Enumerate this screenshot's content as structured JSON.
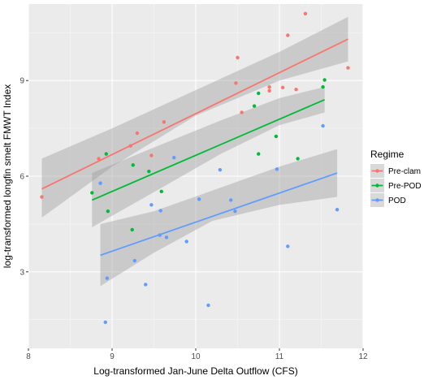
{
  "chart_data": {
    "type": "scatter",
    "xlabel": "Log-transformed Jan-June Delta Outflow (CFS)",
    "ylabel": "log-transformed longfin smelt FMWT Index",
    "xlim": [
      8,
      12
    ],
    "ylim": [
      0.6,
      11.4
    ],
    "x_ticks": [
      8,
      9,
      10,
      11,
      12
    ],
    "y_ticks": [
      3,
      6,
      9
    ],
    "x_tick_labels": [
      "8",
      "9",
      "10",
      "11",
      "12"
    ],
    "y_tick_labels": [
      "3",
      "6",
      "9"
    ],
    "grid": true,
    "background": "#ebebeb",
    "legend": {
      "title": "Regime",
      "position": "right"
    },
    "series": [
      {
        "name": "Pre-clam",
        "color": "#F8766D",
        "points": [
          [
            8.16,
            5.35
          ],
          [
            8.84,
            6.55
          ],
          [
            9.22,
            6.95
          ],
          [
            9.3,
            7.35
          ],
          [
            9.47,
            6.65
          ],
          [
            9.62,
            7.7
          ],
          [
            10.48,
            8.92
          ],
          [
            10.5,
            9.72
          ],
          [
            10.55,
            8.0
          ],
          [
            10.88,
            8.8
          ],
          [
            10.88,
            8.68
          ],
          [
            11.04,
            8.78
          ],
          [
            11.1,
            10.42
          ],
          [
            11.2,
            8.72
          ],
          [
            11.31,
            11.1
          ],
          [
            11.82,
            9.4
          ]
        ],
        "fit": {
          "x": [
            8.16,
            11.82
          ],
          "y": [
            5.6,
            10.3
          ]
        },
        "ci_lower": [
          [
            8.16,
            4.7
          ],
          [
            9.0,
            6.3
          ],
          [
            10.0,
            7.9
          ],
          [
            11.0,
            9.0
          ],
          [
            11.82,
            9.6
          ]
        ],
        "ci_upper": [
          [
            8.16,
            6.55
          ],
          [
            9.0,
            7.5
          ],
          [
            10.0,
            8.7
          ],
          [
            11.0,
            9.9
          ],
          [
            11.82,
            11.0
          ]
        ]
      },
      {
        "name": "Pre-POD",
        "color": "#00BA38",
        "points": [
          [
            8.76,
            5.48
          ],
          [
            8.93,
            6.7
          ],
          [
            8.95,
            4.9
          ],
          [
            9.24,
            4.32
          ],
          [
            9.25,
            6.35
          ],
          [
            9.44,
            6.15
          ],
          [
            9.59,
            5.52
          ],
          [
            10.7,
            8.2
          ],
          [
            10.75,
            8.6
          ],
          [
            10.75,
            6.7
          ],
          [
            10.96,
            7.25
          ],
          [
            11.22,
            6.55
          ],
          [
            11.52,
            8.8
          ],
          [
            11.54,
            9.02
          ]
        ],
        "fit": {
          "x": [
            8.76,
            11.54
          ],
          "y": [
            5.25,
            8.4
          ]
        },
        "ci_lower": [
          [
            8.76,
            4.4
          ],
          [
            9.5,
            5.5
          ],
          [
            10.3,
            6.7
          ],
          [
            11.0,
            7.6
          ],
          [
            11.54,
            8.0
          ]
        ],
        "ci_upper": [
          [
            8.76,
            6.1
          ],
          [
            9.5,
            6.9
          ],
          [
            10.3,
            7.75
          ],
          [
            11.0,
            8.45
          ],
          [
            11.54,
            8.8
          ]
        ]
      },
      {
        "name": "POD",
        "color": "#619CFF",
        "points": [
          [
            8.86,
            5.78
          ],
          [
            8.92,
            1.42
          ],
          [
            8.94,
            2.8
          ],
          [
            9.27,
            3.35
          ],
          [
            9.4,
            2.6
          ],
          [
            9.47,
            5.1
          ],
          [
            9.57,
            4.15
          ],
          [
            9.58,
            4.92
          ],
          [
            9.65,
            4.08
          ],
          [
            9.74,
            6.58
          ],
          [
            9.89,
            3.95
          ],
          [
            10.04,
            5.28
          ],
          [
            10.15,
            1.95
          ],
          [
            10.29,
            6.2
          ],
          [
            10.42,
            5.25
          ],
          [
            10.47,
            4.9
          ],
          [
            10.97,
            6.22
          ],
          [
            11.1,
            3.8
          ],
          [
            11.52,
            7.58
          ],
          [
            11.69,
            4.95
          ]
        ],
        "fit": {
          "x": [
            8.86,
            11.69
          ],
          "y": [
            3.52,
            6.1
          ]
        },
        "ci_lower": [
          [
            8.86,
            2.55
          ],
          [
            9.5,
            3.6
          ],
          [
            10.2,
            4.6
          ],
          [
            11.0,
            5.1
          ],
          [
            11.69,
            5.35
          ]
        ],
        "ci_upper": [
          [
            8.86,
            4.5
          ],
          [
            9.5,
            4.9
          ],
          [
            10.2,
            5.55
          ],
          [
            11.0,
            6.3
          ],
          [
            11.69,
            6.85
          ]
        ]
      }
    ]
  }
}
